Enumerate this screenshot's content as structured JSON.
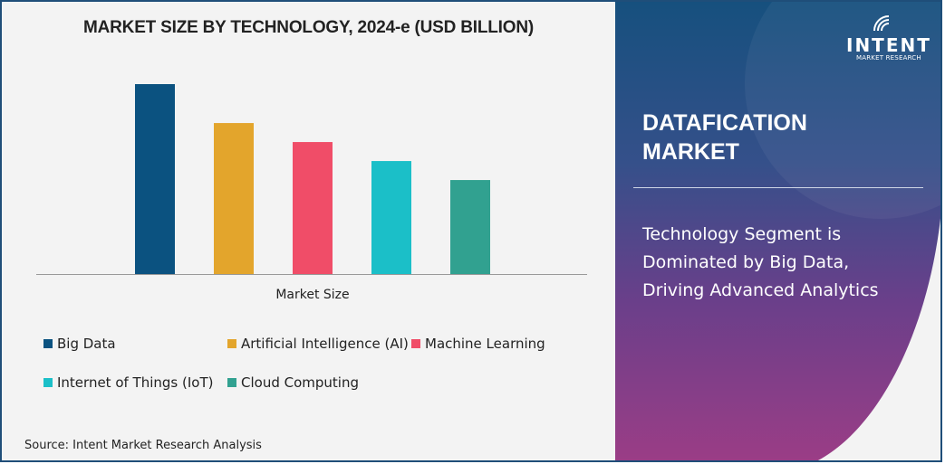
{
  "chart_data": {
    "type": "bar",
    "title": "MARKET SIZE BY TECHNOLOGY, 2024-e (USD BILLION)",
    "xlabel": "Market Size",
    "ylabel": "",
    "categories": [
      "Big Data",
      "Artificial Intelligence (AI)",
      "Machine Learning",
      "Internet of Things (IoT)",
      "Cloud Computing"
    ],
    "values": [
      100,
      79.5,
      69.5,
      59.5,
      49.5
    ],
    "colors": [
      "#0b5280",
      "#e3a52c",
      "#f04d68",
      "#1bbfc8",
      "#31a190"
    ],
    "ylim": [
      0,
      100
    ],
    "grid": false,
    "legend_position": "bottom",
    "source": "Source: Intent Market Research Analysis"
  },
  "panel": {
    "logo_word": "INTENT",
    "logo_sub": "MARKET RESEARCH",
    "title_line1": "DATAFICATION",
    "title_line2": "MARKET",
    "sub_line1": "Technology Segment is",
    "sub_line2": "Dominated by Big Data,",
    "sub_line3": "Driving Advanced Analytics"
  }
}
